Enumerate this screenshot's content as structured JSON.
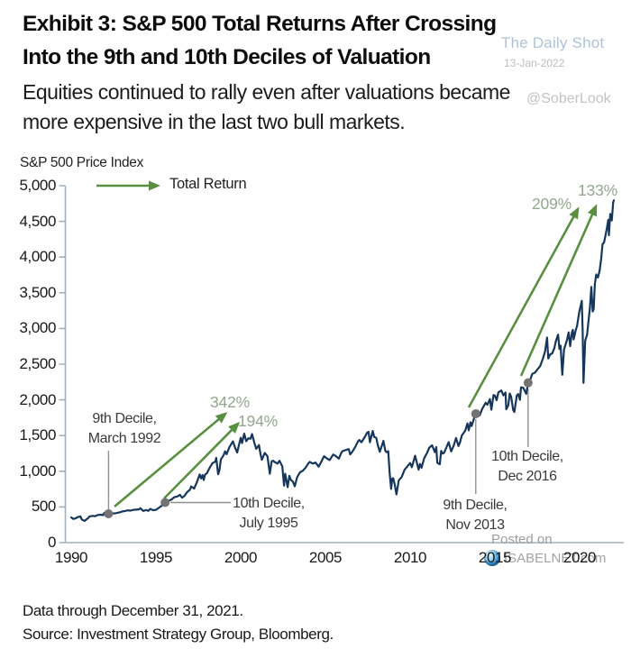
{
  "header": {
    "title_line1": "Exhibit 3: S&P 500 Total Returns After Crossing",
    "title_line2": "Into the 9th and 10th Deciles of Valuation",
    "subtitle_line1": "Equities continued to rally even after valuations became",
    "subtitle_line2": "more expensive in the last two bull markets."
  },
  "watermarks": {
    "daily_shot": "The Daily Shot",
    "date": "13-Jan-2022",
    "sober_look": "@SoberLook",
    "posted_on": "Posted on",
    "isabelnet": "ISABELNET.com"
  },
  "footer": {
    "line1": "Data through December 31, 2021.",
    "line2": "Source: Investment Strategy Group, Bloomberg."
  },
  "chart_data": {
    "type": "line",
    "title": "Exhibit 3: S&P 500 Total Returns After Crossing Into the 9th and 10th Deciles of Valuation",
    "subtitle": "Equities continued to rally even after valuations became more expensive in the last two bull markets.",
    "ylabel": "S&P 500 Price Index",
    "xlabel": "",
    "legend_label": "Total Return",
    "grid": "off",
    "legend_position": "top-left",
    "ylim": [
      0,
      5000
    ],
    "xlim": [
      1990,
      2022.3
    ],
    "x_ticks": [
      1990,
      1995,
      2000,
      2005,
      2010,
      2015,
      2020
    ],
    "y_tick_values": [
      5000,
      4500,
      4000,
      3500,
      3000,
      2500,
      2000,
      1500,
      1000,
      500,
      0
    ],
    "y_tick_labels": [
      "5,000",
      "4,500",
      "4,000",
      "3,500",
      "3,000",
      "2,500",
      "2,000",
      "1,500",
      "1,000",
      "500",
      "0"
    ],
    "colors": {
      "line": "#16365c",
      "arrow": "#588f41",
      "pct_label": "#93a78e",
      "marker_dot": "#737373",
      "leader": "#909090",
      "axis": "#a2b1bd"
    },
    "series": [
      {
        "name": "S&P 500 Price Index",
        "color": "#16365c",
        "points": [
          [
            1990.0,
            353
          ],
          [
            1990.13,
            332
          ],
          [
            1990.25,
            340
          ],
          [
            1990.42,
            361
          ],
          [
            1990.54,
            368
          ],
          [
            1990.63,
            323
          ],
          [
            1990.79,
            304
          ],
          [
            1990.88,
            322
          ],
          [
            1991.0,
            343
          ],
          [
            1991.08,
            367
          ],
          [
            1991.25,
            375
          ],
          [
            1991.42,
            371
          ],
          [
            1991.58,
            387
          ],
          [
            1991.75,
            392
          ],
          [
            1991.88,
            385
          ],
          [
            1991.96,
            417
          ],
          [
            1992.04,
            409
          ],
          [
            1992.2,
            404
          ],
          [
            1992.33,
            415
          ],
          [
            1992.5,
            408
          ],
          [
            1992.67,
            414
          ],
          [
            1992.83,
            422
          ],
          [
            1993.0,
            435
          ],
          [
            1993.17,
            443
          ],
          [
            1993.33,
            452
          ],
          [
            1993.5,
            448
          ],
          [
            1993.67,
            459
          ],
          [
            1993.83,
            462
          ],
          [
            1994.0,
            466
          ],
          [
            1994.08,
            482
          ],
          [
            1994.25,
            445
          ],
          [
            1994.42,
            457
          ],
          [
            1994.54,
            444
          ],
          [
            1994.67,
            472
          ],
          [
            1994.83,
            454
          ],
          [
            1995.0,
            459
          ],
          [
            1995.17,
            487
          ],
          [
            1995.33,
            515
          ],
          [
            1995.54,
            562
          ],
          [
            1995.75,
            584
          ],
          [
            1995.92,
            605
          ],
          [
            1996.08,
            636
          ],
          [
            1996.25,
            645
          ],
          [
            1996.42,
            669
          ],
          [
            1996.54,
            630
          ],
          [
            1996.67,
            652
          ],
          [
            1996.83,
            705
          ],
          [
            1997.0,
            741
          ],
          [
            1997.08,
            786
          ],
          [
            1997.25,
            757
          ],
          [
            1997.42,
            848
          ],
          [
            1997.58,
            954
          ],
          [
            1997.67,
            899
          ],
          [
            1997.75,
            947
          ],
          [
            1997.82,
            877
          ],
          [
            1997.9,
            955
          ],
          [
            1998.0,
            970
          ],
          [
            1998.17,
            1049
          ],
          [
            1998.33,
            1112
          ],
          [
            1998.5,
            1134
          ],
          [
            1998.56,
            1187
          ],
          [
            1998.67,
            957
          ],
          [
            1998.75,
            1017
          ],
          [
            1998.83,
            1164
          ],
          [
            1999.0,
            1229
          ],
          [
            1999.08,
            1280
          ],
          [
            1999.17,
            1239
          ],
          [
            1999.33,
            1336
          ],
          [
            1999.54,
            1419
          ],
          [
            1999.67,
            1328
          ],
          [
            1999.79,
            1263
          ],
          [
            1999.92,
            1389
          ],
          [
            2000.0,
            1469
          ],
          [
            2000.08,
            1394
          ],
          [
            2000.21,
            1527
          ],
          [
            2000.33,
            1421
          ],
          [
            2000.46,
            1462
          ],
          [
            2000.58,
            1455
          ],
          [
            2000.67,
            1521
          ],
          [
            2000.83,
            1379
          ],
          [
            2000.92,
            1315
          ],
          [
            2001.08,
            1366
          ],
          [
            2001.17,
            1240
          ],
          [
            2001.25,
            1160
          ],
          [
            2001.42,
            1256
          ],
          [
            2001.58,
            1211
          ],
          [
            2001.72,
            966
          ],
          [
            2001.83,
            1139
          ],
          [
            2001.92,
            1148
          ],
          [
            2002.0,
            1130
          ],
          [
            2002.17,
            1107
          ],
          [
            2002.29,
            1147
          ],
          [
            2002.46,
            1067
          ],
          [
            2002.56,
            798
          ],
          [
            2002.63,
            965
          ],
          [
            2002.77,
            777
          ],
          [
            2002.87,
            936
          ],
          [
            2002.96,
            880
          ],
          [
            2003.08,
            855
          ],
          [
            2003.19,
            789
          ],
          [
            2003.33,
            916
          ],
          [
            2003.5,
            985
          ],
          [
            2003.67,
            1008
          ],
          [
            2003.83,
            1050
          ],
          [
            2004.0,
            1112
          ],
          [
            2004.08,
            1131
          ],
          [
            2004.25,
            1107
          ],
          [
            2004.42,
            1121
          ],
          [
            2004.6,
            1064
          ],
          [
            2004.75,
            1130
          ],
          [
            2004.92,
            1211
          ],
          [
            2005.08,
            1181
          ],
          [
            2005.25,
            1157
          ],
          [
            2005.46,
            1234
          ],
          [
            2005.58,
            1218
          ],
          [
            2005.79,
            1177
          ],
          [
            2005.92,
            1249
          ],
          [
            2006.0,
            1280
          ],
          [
            2006.17,
            1295
          ],
          [
            2006.38,
            1310
          ],
          [
            2006.46,
            1236
          ],
          [
            2006.58,
            1270
          ],
          [
            2006.75,
            1336
          ],
          [
            2006.92,
            1418
          ],
          [
            2007.0,
            1438
          ],
          [
            2007.13,
            1407
          ],
          [
            2007.33,
            1482
          ],
          [
            2007.46,
            1539
          ],
          [
            2007.54,
            1553
          ],
          [
            2007.63,
            1406
          ],
          [
            2007.75,
            1526
          ],
          [
            2007.79,
            1565
          ],
          [
            2007.88,
            1481
          ],
          [
            2008.0,
            1468
          ],
          [
            2008.08,
            1378
          ],
          [
            2008.21,
            1273
          ],
          [
            2008.38,
            1390
          ],
          [
            2008.42,
            1426
          ],
          [
            2008.54,
            1280
          ],
          [
            2008.63,
            1267
          ],
          [
            2008.71,
            1282
          ],
          [
            2008.79,
            969
          ],
          [
            2008.88,
            752
          ],
          [
            2008.94,
            896
          ],
          [
            2009.0,
            903
          ],
          [
            2009.08,
            826
          ],
          [
            2009.19,
            677
          ],
          [
            2009.33,
            872
          ],
          [
            2009.5,
            919
          ],
          [
            2009.67,
            1020
          ],
          [
            2009.83,
            1066
          ],
          [
            2010.0,
            1115
          ],
          [
            2010.1,
            1057
          ],
          [
            2010.29,
            1217
          ],
          [
            2010.5,
            1023
          ],
          [
            2010.58,
            1102
          ],
          [
            2010.67,
            1049
          ],
          [
            2010.83,
            1183
          ],
          [
            2011.0,
            1258
          ],
          [
            2011.13,
            1329
          ],
          [
            2011.29,
            1364
          ],
          [
            2011.46,
            1268
          ],
          [
            2011.54,
            1339
          ],
          [
            2011.6,
            1119
          ],
          [
            2011.75,
            1099
          ],
          [
            2011.83,
            1285
          ],
          [
            2011.92,
            1247
          ],
          [
            2012.0,
            1258
          ],
          [
            2012.1,
            1312
          ],
          [
            2012.27,
            1408
          ],
          [
            2012.42,
            1278
          ],
          [
            2012.58,
            1365
          ],
          [
            2012.71,
            1466
          ],
          [
            2012.85,
            1353
          ],
          [
            2012.96,
            1416
          ],
          [
            2013.04,
            1498
          ],
          [
            2013.25,
            1569
          ],
          [
            2013.38,
            1669
          ],
          [
            2013.46,
            1573
          ],
          [
            2013.56,
            1686
          ],
          [
            2013.63,
            1633
          ],
          [
            2013.75,
            1726
          ],
          [
            2013.87,
            1805
          ],
          [
            2014.0,
            1848
          ],
          [
            2014.1,
            1783
          ],
          [
            2014.25,
            1872
          ],
          [
            2014.46,
            1960
          ],
          [
            2014.56,
            1931
          ],
          [
            2014.71,
            2011
          ],
          [
            2014.79,
            1862
          ],
          [
            2014.92,
            2068
          ],
          [
            2015.0,
            2059
          ],
          [
            2015.1,
            1995
          ],
          [
            2015.21,
            2105
          ],
          [
            2015.38,
            2131
          ],
          [
            2015.5,
            2063
          ],
          [
            2015.63,
            2104
          ],
          [
            2015.67,
            1868
          ],
          [
            2015.79,
            1924
          ],
          [
            2015.88,
            2090
          ],
          [
            2015.96,
            2044
          ],
          [
            2016.08,
            1859
          ],
          [
            2016.15,
            1829
          ],
          [
            2016.29,
            2060
          ],
          [
            2016.38,
            2081
          ],
          [
            2016.48,
            2001
          ],
          [
            2016.54,
            2175
          ],
          [
            2016.67,
            2171
          ],
          [
            2016.85,
            2085
          ],
          [
            2016.96,
            2239
          ],
          [
            2017.08,
            2279
          ],
          [
            2017.21,
            2364
          ],
          [
            2017.38,
            2384
          ],
          [
            2017.5,
            2423
          ],
          [
            2017.67,
            2472
          ],
          [
            2017.83,
            2575
          ],
          [
            2017.96,
            2674
          ],
          [
            2018.08,
            2873
          ],
          [
            2018.15,
            2581
          ],
          [
            2018.27,
            2641
          ],
          [
            2018.38,
            2648
          ],
          [
            2018.5,
            2718
          ],
          [
            2018.6,
            2823
          ],
          [
            2018.73,
            2914
          ],
          [
            2018.81,
            2712
          ],
          [
            2018.88,
            2760
          ],
          [
            2018.98,
            2351
          ],
          [
            2019.08,
            2704
          ],
          [
            2019.25,
            2834
          ],
          [
            2019.35,
            2946
          ],
          [
            2019.44,
            2752
          ],
          [
            2019.54,
            2942
          ],
          [
            2019.6,
            2980
          ],
          [
            2019.65,
            2847
          ],
          [
            2019.77,
            2977
          ],
          [
            2019.85,
            3038
          ],
          [
            2019.98,
            3231
          ],
          [
            2020.13,
            3386
          ],
          [
            2020.18,
            2954
          ],
          [
            2020.23,
            2237
          ],
          [
            2020.33,
            2830
          ],
          [
            2020.44,
            2912
          ],
          [
            2020.52,
            3100
          ],
          [
            2020.6,
            3271
          ],
          [
            2020.69,
            3581
          ],
          [
            2020.77,
            3237
          ],
          [
            2020.83,
            3270
          ],
          [
            2020.9,
            3622
          ],
          [
            2020.98,
            3756
          ],
          [
            2021.08,
            3714
          ],
          [
            2021.18,
            3811
          ],
          [
            2021.27,
            3973
          ],
          [
            2021.35,
            4181
          ],
          [
            2021.44,
            4204
          ],
          [
            2021.52,
            4297
          ],
          [
            2021.6,
            4395
          ],
          [
            2021.69,
            4523
          ],
          [
            2021.73,
            4307
          ],
          [
            2021.81,
            4605
          ],
          [
            2021.85,
            4567
          ],
          [
            2021.9,
            4513
          ],
          [
            2021.98,
            4766
          ],
          [
            2022.02,
            4794
          ]
        ]
      }
    ],
    "markers": [
      {
        "x": 1992.2,
        "y": 404,
        "label_line1": "9th Decile,",
        "label_line2": "March 1992"
      },
      {
        "x": 1995.54,
        "y": 562,
        "label_line1": "10th Decile,",
        "label_line2": "July 1995"
      },
      {
        "x": 2013.87,
        "y": 1805,
        "label_line1": "9th Decile,",
        "label_line2": "Nov 2013"
      },
      {
        "x": 2016.96,
        "y": 2239,
        "label_line1": "10th Decile,",
        "label_line2": "Dec 2016"
      }
    ],
    "returns": [
      {
        "label": "342%",
        "from": "9th Decile, March 1992"
      },
      {
        "label": "194%",
        "from": "10th Decile, July 1995"
      },
      {
        "label": "209%",
        "from": "9th Decile, Nov 2013"
      },
      {
        "label": "133%",
        "from": "10th Decile, Dec 2016"
      }
    ]
  }
}
